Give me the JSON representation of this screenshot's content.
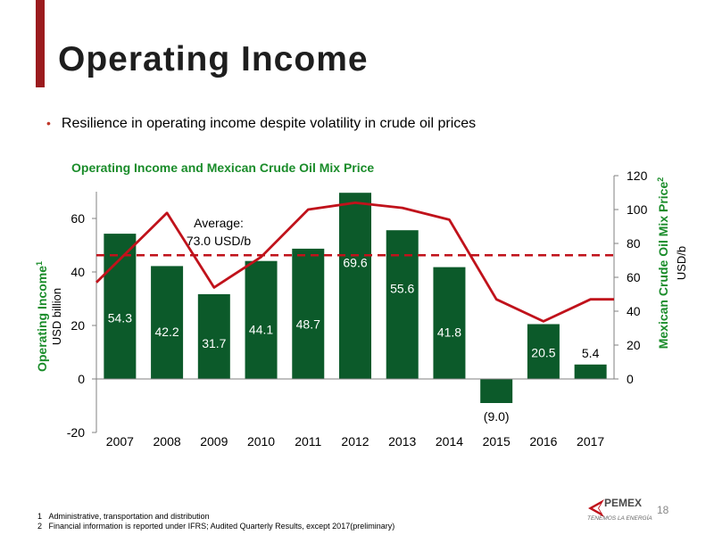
{
  "page": {
    "title": "Operating Income",
    "bullet": "Resilience in operating income despite volatility in crude oil prices",
    "page_number": "18",
    "footnotes": [
      {
        "num": "1",
        "text": "Administrative, transportation and distribution"
      },
      {
        "num": "2",
        "text": "Financial information is reported under IFRS; Audited Quarterly Results, except 2017(preliminary)"
      }
    ],
    "logo": {
      "name": "PEMEX",
      "tagline": "TENEMOS LA ENERGÍA"
    },
    "colors": {
      "accent": "#9b1b1e",
      "bar": "#0c5a2a",
      "line": "#c0121b",
      "axis_title": "#1a8c2a"
    }
  },
  "chart_data": {
    "type": "bar",
    "title": "Operating Income and Mexican Crude Oil Mix Price",
    "categories": [
      "2007",
      "2008",
      "2009",
      "2010",
      "2011",
      "2012",
      "2013",
      "2014",
      "2015",
      "2016",
      "2017"
    ],
    "series": [
      {
        "axis": "left",
        "type": "bar",
        "values": [
          54.3,
          42.2,
          31.7,
          44.1,
          48.7,
          69.6,
          55.6,
          41.8,
          -9.0,
          20.5,
          5.4
        ],
        "labels": [
          "54.3",
          "42.2",
          "31.7",
          "44.1",
          "48.7",
          "69.6",
          "55.6",
          "41.8",
          "(9.0)",
          "20.5",
          "5.4"
        ]
      },
      {
        "axis": "right",
        "type": "line",
        "values": [
          57,
          98,
          54,
          72,
          100,
          104,
          101,
          94,
          47,
          34,
          47
        ]
      }
    ],
    "left_axis": {
      "title": "Operating Income",
      "superscript": "1",
      "unit": "USD billion",
      "ylim": [
        -20,
        70
      ],
      "ticks": [
        "-20",
        "0",
        "20",
        "40",
        "60"
      ]
    },
    "right_axis": {
      "title": "Mexican Crude Oil Mix Price",
      "superscript": "2",
      "unit": "USD/b",
      "ylim": [
        0,
        120
      ],
      "ticks": [
        "0",
        "20",
        "40",
        "60",
        "80",
        "100",
        "120"
      ]
    },
    "average": {
      "value": 73.0,
      "axis": "right",
      "label_line1": "Average:",
      "label_line2": "73.0 USD/b"
    },
    "grid": false
  }
}
